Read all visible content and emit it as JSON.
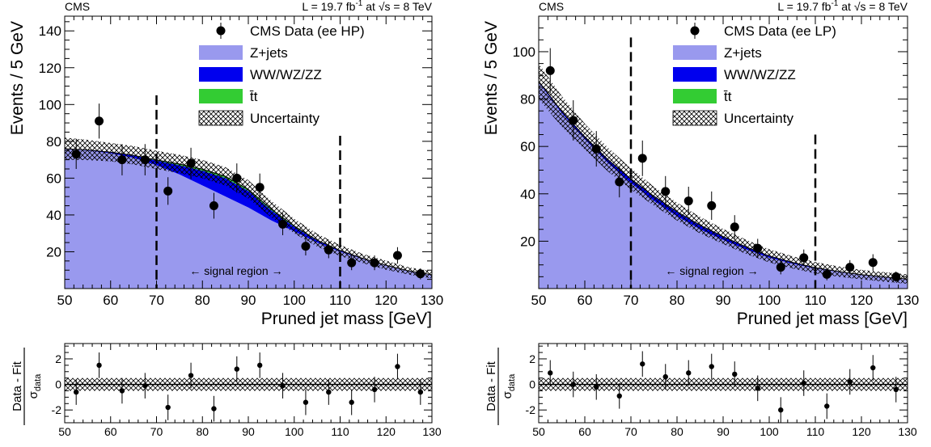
{
  "panels": [
    {
      "experiment": "CMS",
      "lumi": "L = 19.7 fb",
      "lumi_exp": "-1",
      "energy": " at √s = 8 TeV",
      "signal_region": "←  signal region  →",
      "ratio_ylabel_num": "Data - Fit",
      "ratio_ylabel_den": "σ",
      "ratio_ylabel_den_sub": "data"
    },
    {
      "experiment": "CMS",
      "lumi": "L = 19.7 fb",
      "lumi_exp": "-1",
      "energy": " at √s = 8 TeV",
      "signal_region": "←  signal region  →",
      "ratio_ylabel_num": "Data - Fit",
      "ratio_ylabel_den": "σ",
      "ratio_ylabel_den_sub": "data"
    }
  ],
  "chart_data": [
    {
      "type": "area",
      "xlabel": "Pruned jet mass [GeV]",
      "ylabel": "Events / 5 GeV",
      "xlim": [
        50,
        130
      ],
      "ylim": [
        0,
        148
      ],
      "x_ticks": [
        50,
        60,
        70,
        80,
        90,
        100,
        110,
        120,
        130
      ],
      "y_ticks": [
        20,
        40,
        60,
        80,
        100,
        120,
        140
      ],
      "signal_region": [
        70,
        110
      ],
      "legend": [
        "CMS Data (ee HP)",
        "Z+jets",
        "WW/WZ/ZZ",
        "t̄t",
        "Uncertainty"
      ],
      "legend_position": "top-right",
      "colors": {
        "zjets": "#9999ee",
        "diboson": "#0000ee",
        "ttbar": "#33cc33",
        "data": "#000000"
      },
      "data": {
        "x": [
          52.5,
          57.5,
          62.5,
          67.5,
          72.5,
          77.5,
          82.5,
          87.5,
          92.5,
          97.5,
          102.5,
          107.5,
          112.5,
          117.5,
          122.5,
          127.5
        ],
        "y": [
          73,
          91,
          70,
          70,
          53,
          68,
          45,
          60,
          55,
          35,
          23,
          21,
          14,
          14,
          18,
          8
        ],
        "err": [
          8,
          9.5,
          8.5,
          8.5,
          7.5,
          8.5,
          7,
          8,
          7.5,
          6,
          5,
          4.5,
          4,
          4,
          4.5,
          3
        ]
      },
      "fit_x": [
        50,
        55,
        60,
        65,
        70,
        75,
        80,
        85,
        90,
        95,
        100,
        105,
        110,
        115,
        120,
        125,
        130
      ],
      "zjets": [
        76,
        75,
        73.5,
        71,
        67,
        62,
        56,
        50,
        44,
        37,
        31,
        25,
        20,
        16,
        12.5,
        9.5,
        7.5
      ],
      "diboson": [
        0,
        0.3,
        0.6,
        1.2,
        2.5,
        5,
        8,
        10,
        9,
        5.5,
        2.5,
        1,
        0.5,
        0.2,
        0.1,
        0.05,
        0
      ],
      "ttbar": [
        0,
        0,
        0,
        0.2,
        0.4,
        0.7,
        0.9,
        1,
        0.9,
        0.7,
        0.5,
        0.3,
        0.2,
        0.1,
        0.1,
        0,
        0
      ],
      "uncertainty": [
        6,
        5.5,
        5,
        5,
        5,
        5,
        5,
        5,
        5,
        4.5,
        4,
        3.5,
        3,
        2.5,
        2.5,
        2,
        2
      ],
      "ratio": {
        "ylim": [
          -3,
          3.2
        ],
        "y_ticks": [
          -2,
          0,
          2
        ],
        "x_ticks": [
          50,
          60,
          70,
          80,
          90,
          100,
          110,
          120,
          130
        ],
        "y": [
          -0.6,
          1.5,
          -0.5,
          -0.1,
          -1.8,
          0.7,
          -1.9,
          1.2,
          1.5,
          -0.1,
          -1.4,
          -0.6,
          -1.4,
          -0.4,
          1.4,
          -0.6
        ],
        "err": [
          1,
          1,
          1,
          1,
          1,
          1,
          1,
          1,
          1,
          1,
          1,
          1,
          1,
          1,
          1,
          1
        ],
        "band": 0.5
      }
    },
    {
      "type": "area",
      "xlabel": "Pruned jet mass [GeV]",
      "ylabel": "Events / 5 GeV",
      "xlim": [
        50,
        130
      ],
      "ylim": [
        0,
        115
      ],
      "x_ticks": [
        50,
        60,
        70,
        80,
        90,
        100,
        110,
        120,
        130
      ],
      "y_ticks": [
        20,
        40,
        60,
        80,
        100
      ],
      "signal_region": [
        70,
        110
      ],
      "legend": [
        "CMS Data (ee LP)",
        "Z+jets",
        "WW/WZ/ZZ",
        "t̄t",
        "Uncertainty"
      ],
      "legend_position": "top-right",
      "colors": {
        "zjets": "#9999ee",
        "diboson": "#0000ee",
        "ttbar": "#33cc33",
        "data": "#000000"
      },
      "data": {
        "x": [
          52.5,
          57.5,
          62.5,
          67.5,
          72.5,
          77.5,
          82.5,
          87.5,
          92.5,
          97.5,
          102.5,
          107.5,
          112.5,
          117.5,
          122.5,
          127.5
        ],
        "y": [
          92,
          71,
          59,
          45,
          55,
          41,
          37,
          35,
          26,
          17,
          9,
          13,
          6,
          9,
          11,
          5
        ],
        "err": [
          9.5,
          8.5,
          7.5,
          6.5,
          7.5,
          6.5,
          6,
          6,
          5,
          4,
          3,
          3.5,
          2.5,
          3,
          3.5,
          2.2
        ]
      },
      "fit_x": [
        50,
        55,
        60,
        65,
        70,
        75,
        80,
        85,
        90,
        95,
        100,
        105,
        110,
        115,
        120,
        125,
        130
      ],
      "zjets": [
        87,
        74,
        63,
        53,
        44.5,
        37,
        30.5,
        25,
        20.5,
        16.5,
        13,
        10.5,
        8.5,
        7,
        5.8,
        4.8,
        4
      ],
      "diboson": [
        0.5,
        0.8,
        1.1,
        1.4,
        1.6,
        1.8,
        1.8,
        1.6,
        1.3,
        1,
        0.7,
        0.5,
        0.3,
        0.2,
        0.1,
        0.1,
        0
      ],
      "ttbar": [
        0,
        0,
        0,
        0.1,
        0.2,
        0.2,
        0.2,
        0.2,
        0.2,
        0.1,
        0.1,
        0.1,
        0,
        0,
        0,
        0,
        0
      ],
      "uncertainty": [
        7.5,
        6.5,
        5.5,
        5,
        4.5,
        4,
        3.8,
        3.5,
        3.2,
        3,
        2.8,
        2.6,
        2.4,
        2.2,
        2,
        2,
        2
      ],
      "ratio": {
        "ylim": [
          -3,
          3.2
        ],
        "y_ticks": [
          -2,
          0,
          2
        ],
        "x_ticks": [
          50,
          60,
          70,
          80,
          90,
          100,
          110,
          120,
          130
        ],
        "y": [
          0.9,
          0.0,
          -0.2,
          -0.9,
          1.6,
          0.6,
          0.9,
          1.4,
          0.8,
          -0.3,
          -2.0,
          0.1,
          -1.7,
          0.2,
          1.3,
          -0.4
        ],
        "err": [
          1,
          1,
          1,
          1,
          1,
          1,
          1,
          1,
          1,
          1,
          1,
          1,
          1,
          1,
          1,
          1
        ],
        "band": 0.5
      }
    }
  ]
}
